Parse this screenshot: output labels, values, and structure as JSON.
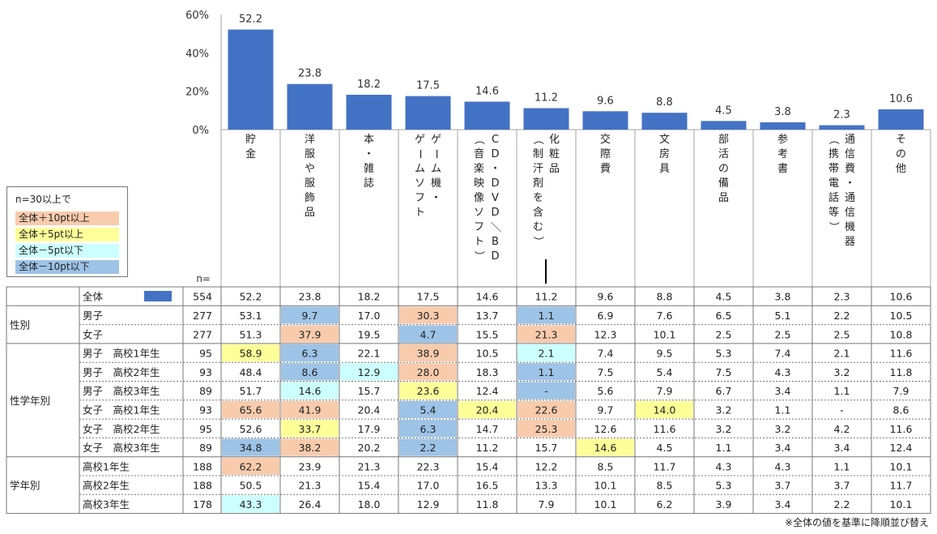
{
  "chart_data": {
    "type": "bar",
    "categories": [
      [
        "貯",
        "金"
      ],
      [
        "洋",
        "服",
        "や",
        "服",
        "飾",
        "品"
      ],
      [
        "本",
        "・",
        "雑",
        "誌"
      ],
      [
        "ゲ",
        "ー",
        "ム",
        "機",
        "・",
        "ゲ",
        "ー",
        "ム",
        "ソ",
        "フ",
        "ト"
      ],
      [
        "C",
        "D",
        "・",
        "D",
        "V",
        "D",
        "／",
        "B",
        "D",
        "（",
        "音",
        "楽",
        "映",
        "像",
        "ソ",
        "フ",
        "ト",
        "）"
      ],
      [
        "化",
        "粧",
        "品",
        "（",
        "制",
        "汗",
        "剤",
        "を",
        "含",
        "む",
        "）"
      ],
      [
        "交",
        "際",
        "費"
      ],
      [
        "文",
        "房",
        "具"
      ],
      [
        "部",
        "活",
        "の",
        "備",
        "品"
      ],
      [
        "参",
        "考",
        "書"
      ],
      [
        "通",
        "信",
        "費",
        "・",
        "通",
        "信",
        "機",
        "器",
        "（",
        "携",
        "帯",
        "電",
        "話",
        "等",
        "）"
      ],
      [
        "そ",
        "の",
        "他"
      ]
    ],
    "values": [
      52.2,
      23.8,
      18.2,
      17.5,
      14.6,
      11.2,
      9.6,
      8.8,
      4.5,
      3.8,
      2.3,
      10.6
    ],
    "value_labels": [
      "52.2",
      "23.8",
      "18.2",
      "17.5",
      "14.6",
      "11.2",
      "9.6",
      "8.8",
      "4.5",
      "3.8",
      "2.3",
      "10.6"
    ],
    "yticks": [
      "60%",
      "40%",
      "20%",
      "0%"
    ],
    "ytick_values": [
      60,
      40,
      20,
      0
    ],
    "ylim": [
      0,
      60
    ],
    "bar_color": "#4472C4",
    "n_header": "n=",
    "table": {
      "rows": [
        {
          "group": "",
          "label": "全体",
          "swatch": true,
          "n": "554",
          "cells": [
            "52.2",
            "23.8",
            "18.2",
            "17.5",
            "14.6",
            "11.2",
            "9.6",
            "8.8",
            "4.5",
            "3.8",
            "2.3",
            "10.6"
          ],
          "hl": [
            "",
            "",
            "",
            "",
            "",
            "",
            "",
            "",
            "",
            "",
            "",
            ""
          ]
        },
        {
          "group": "性別",
          "label": "男子",
          "n": "277",
          "cells": [
            "53.1",
            "9.7",
            "17.0",
            "30.3",
            "13.7",
            "1.1",
            "6.9",
            "7.6",
            "6.5",
            "5.1",
            "2.2",
            "10.5"
          ],
          "hl": [
            "",
            "b",
            "",
            "o",
            "",
            "b",
            "",
            "",
            "",
            "",
            "",
            ""
          ]
        },
        {
          "group": "",
          "label": "女子",
          "n": "277",
          "cells": [
            "51.3",
            "37.9",
            "19.5",
            "4.7",
            "15.5",
            "21.3",
            "12.3",
            "10.1",
            "2.5",
            "2.5",
            "2.5",
            "10.8"
          ],
          "hl": [
            "",
            "o",
            "",
            "b",
            "",
            "o",
            "",
            "",
            "",
            "",
            "",
            ""
          ]
        },
        {
          "group": "性学年別",
          "label": "男子　高校1年生",
          "n": "95",
          "cells": [
            "58.9",
            "6.3",
            "22.1",
            "38.9",
            "10.5",
            "2.1",
            "7.4",
            "9.5",
            "5.3",
            "7.4",
            "2.1",
            "11.6"
          ],
          "hl": [
            "y",
            "b",
            "",
            "o",
            "",
            "c",
            "",
            "",
            "",
            "",
            "",
            ""
          ]
        },
        {
          "group": "",
          "label": "男子　高校2年生",
          "n": "93",
          "cells": [
            "48.4",
            "8.6",
            "12.9",
            "28.0",
            "18.3",
            "1.1",
            "7.5",
            "5.4",
            "7.5",
            "4.3",
            "3.2",
            "11.8"
          ],
          "hl": [
            "",
            "b",
            "c",
            "o",
            "",
            "b",
            "",
            "",
            "",
            "",
            "",
            ""
          ]
        },
        {
          "group": "",
          "label": "男子　高校3年生",
          "n": "89",
          "cells": [
            "51.7",
            "14.6",
            "15.7",
            "23.6",
            "12.4",
            "-",
            "5.6",
            "7.9",
            "6.7",
            "3.4",
            "1.1",
            "7.9"
          ],
          "hl": [
            "",
            "c",
            "",
            "y",
            "",
            "b",
            "",
            "",
            "",
            "",
            "",
            ""
          ]
        },
        {
          "group": "",
          "label": "女子　高校1年生",
          "n": "93",
          "cells": [
            "65.6",
            "41.9",
            "20.4",
            "5.4",
            "20.4",
            "22.6",
            "9.7",
            "14.0",
            "3.2",
            "1.1",
            "-",
            "8.6"
          ],
          "hl": [
            "o",
            "o",
            "",
            "b",
            "y",
            "o",
            "",
            "y",
            "",
            "",
            "",
            ""
          ]
        },
        {
          "group": "",
          "label": "女子　高校2年生",
          "n": "95",
          "cells": [
            "52.6",
            "33.7",
            "17.9",
            "6.3",
            "14.7",
            "25.3",
            "12.6",
            "11.6",
            "3.2",
            "3.2",
            "4.2",
            "11.6"
          ],
          "hl": [
            "",
            "y",
            "",
            "b",
            "",
            "o",
            "",
            "",
            "",
            "",
            "",
            ""
          ]
        },
        {
          "group": "",
          "label": "女子　高校3年生",
          "n": "89",
          "cells": [
            "34.8",
            "38.2",
            "20.2",
            "2.2",
            "11.2",
            "15.7",
            "14.6",
            "4.5",
            "1.1",
            "3.4",
            "3.4",
            "12.4"
          ],
          "hl": [
            "b",
            "o",
            "",
            "b",
            "",
            "",
            "y",
            "",
            "",
            "",
            "",
            ""
          ]
        },
        {
          "group": "学年別",
          "label": "高校1年生",
          "n": "188",
          "cells": [
            "62.2",
            "23.9",
            "21.3",
            "22.3",
            "15.4",
            "12.2",
            "8.5",
            "11.7",
            "4.3",
            "4.3",
            "1.1",
            "10.1"
          ],
          "hl": [
            "o",
            "",
            "",
            "",
            "",
            "",
            "",
            "",
            "",
            "",
            "",
            ""
          ]
        },
        {
          "group": "",
          "label": "高校2年生",
          "n": "188",
          "cells": [
            "50.5",
            "21.3",
            "15.4",
            "17.0",
            "16.5",
            "13.3",
            "10.1",
            "8.5",
            "5.3",
            "3.7",
            "3.7",
            "11.7"
          ],
          "hl": [
            "",
            "",
            "",
            "",
            "",
            "",
            "",
            "",
            "",
            "",
            "",
            ""
          ]
        },
        {
          "group": "",
          "label": "高校3年生",
          "n": "178",
          "cells": [
            "43.3",
            "26.4",
            "18.0",
            "12.9",
            "11.8",
            "7.9",
            "10.1",
            "6.2",
            "3.9",
            "3.4",
            "2.2",
            "10.1"
          ],
          "hl": [
            "c",
            "",
            "",
            "",
            "",
            "",
            "",
            "",
            "",
            "",
            "",
            ""
          ]
        }
      ]
    }
  },
  "legend": {
    "title": "n=30以上で",
    "items": [
      {
        "label": "全体＋10pt以上",
        "color": "#F8CBAD"
      },
      {
        "label": "全体＋5pt以上",
        "color": "#FFFF99"
      },
      {
        "label": "全体－5pt以下",
        "color": "#CCFFFF"
      },
      {
        "label": "全体－10pt以下",
        "color": "#9DC3E6"
      }
    ]
  },
  "colors": {
    "o": "#F8CBAD",
    "y": "#FFFF99",
    "c": "#CCFFFF",
    "b": "#9DC3E6"
  },
  "footnote": "※全体の値を基準に降順並び替え"
}
